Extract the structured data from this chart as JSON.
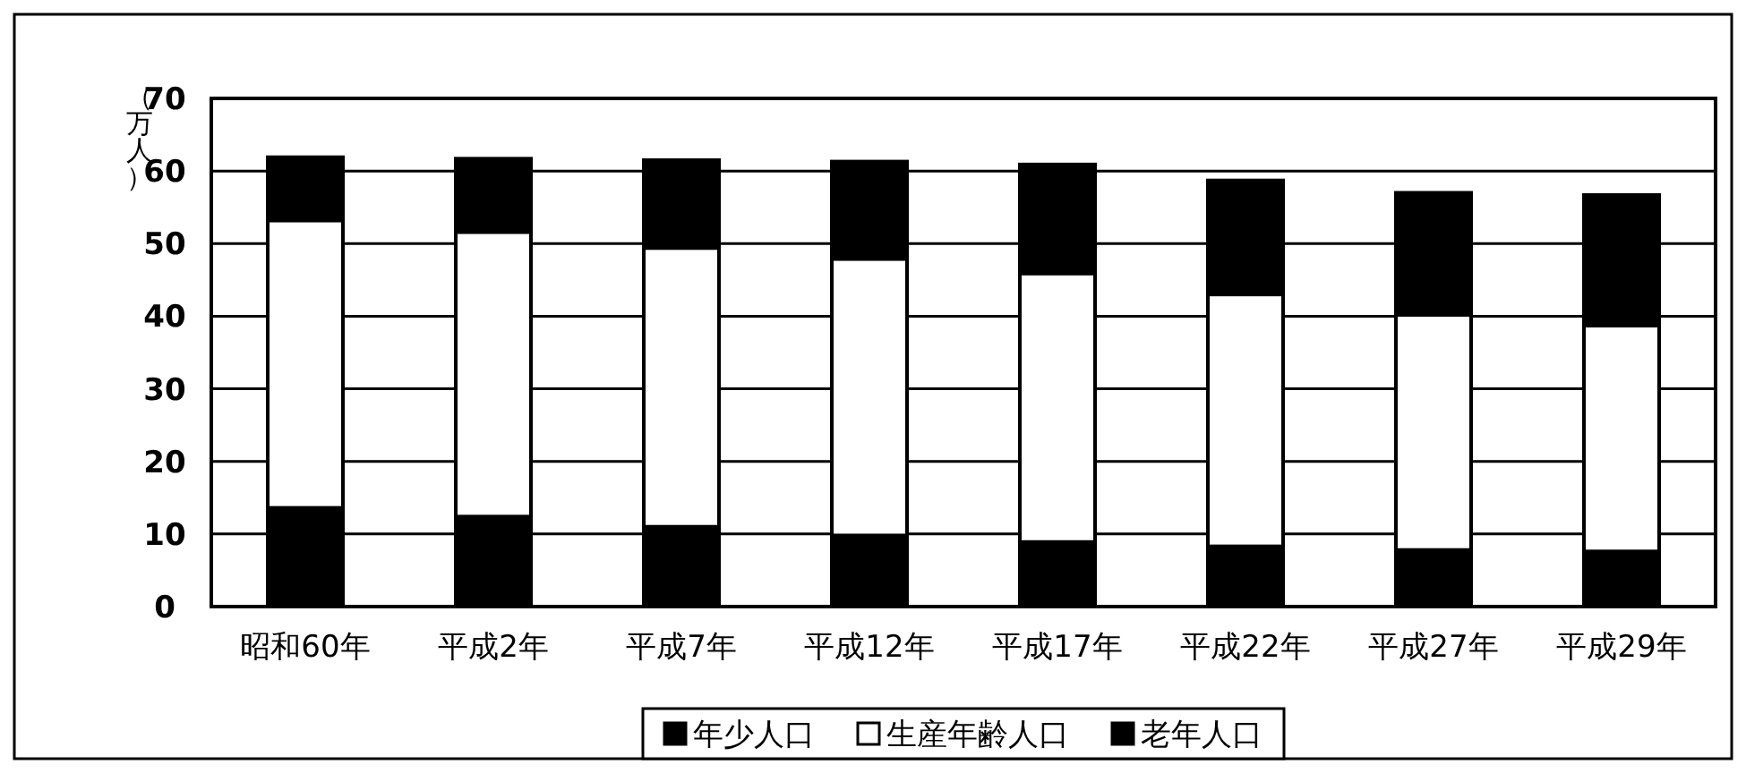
{
  "chart_data": {
    "type": "bar",
    "stacked": true,
    "ylabel": "（万人）",
    "categories": [
      "昭和60年",
      "平成2年",
      "平成7年",
      "平成12年",
      "平成17年",
      "平成22年",
      "平成27年",
      "平成29年"
    ],
    "series": [
      {
        "name": "年少人口",
        "color": "#000000",
        "values": [
          13.6,
          12.4,
          11.0,
          9.8,
          8.9,
          8.3,
          7.8,
          7.6
        ]
      },
      {
        "name": "生産年齢人口",
        "color": "#ffffff",
        "values": [
          39.6,
          39.2,
          38.4,
          38.1,
          37.0,
          34.7,
          32.4,
          31.1
        ]
      },
      {
        "name": "老年人口",
        "color": "#000000",
        "values": [
          8.7,
          10.1,
          12.1,
          13.4,
          15.0,
          15.7,
          16.8,
          18.0
        ]
      }
    ],
    "ylim": [
      0,
      70
    ],
    "yticks": [
      0,
      10,
      20,
      30,
      40,
      50,
      60,
      70
    ],
    "grid": "y",
    "legend": "bottom"
  }
}
